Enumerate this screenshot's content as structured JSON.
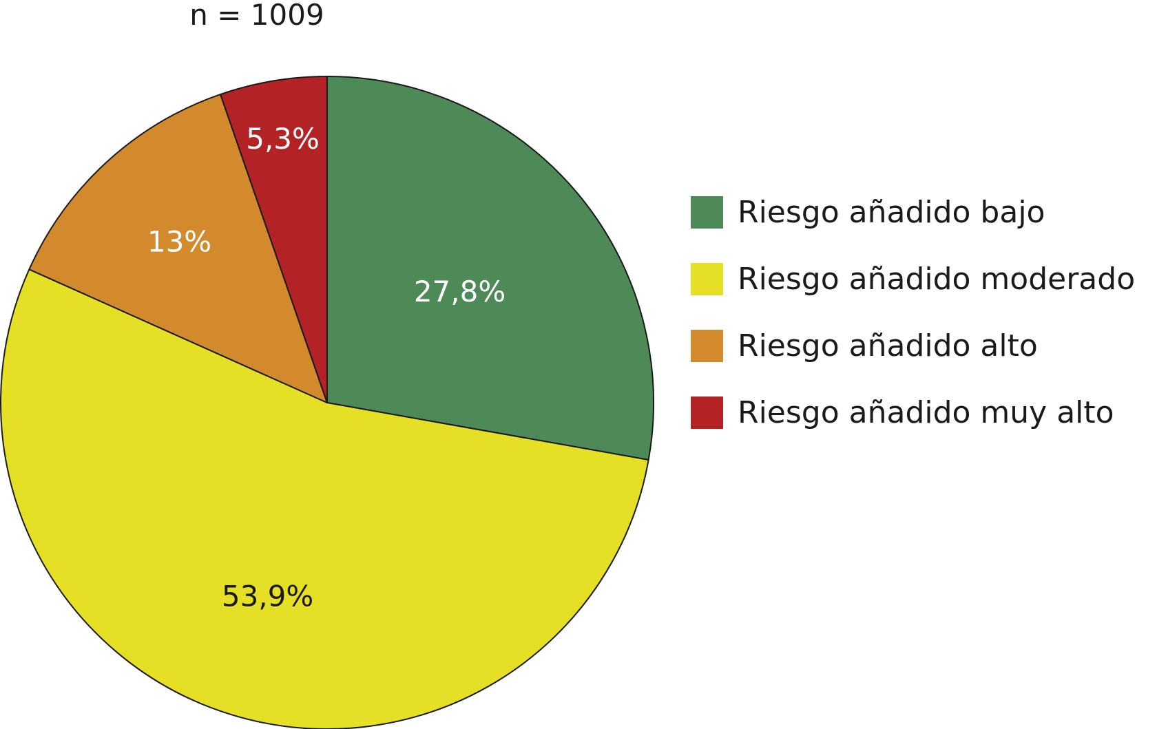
{
  "n_label": "n = 1009",
  "chart_data": {
    "type": "pie",
    "title": "",
    "legend_position": "right",
    "slices": [
      {
        "name": "Riesgo añadido bajo",
        "value": 27.8,
        "label": "27,8%",
        "color": "#4e8a58",
        "label_color": "#ffffff"
      },
      {
        "name": "Riesgo añadido moderado",
        "value": 53.9,
        "label": "53,9%",
        "color": "#e5e025",
        "label_color": "#1a1a1a"
      },
      {
        "name": "Riesgo añadido alto",
        "value": 13,
        "label": "13%",
        "color": "#d28a2c",
        "label_color": "#ffffff"
      },
      {
        "name": "Riesgo añadido muy alto",
        "value": 5.3,
        "label": "5,3%",
        "color": "#b32225",
        "label_color": "#ffffff"
      }
    ]
  }
}
